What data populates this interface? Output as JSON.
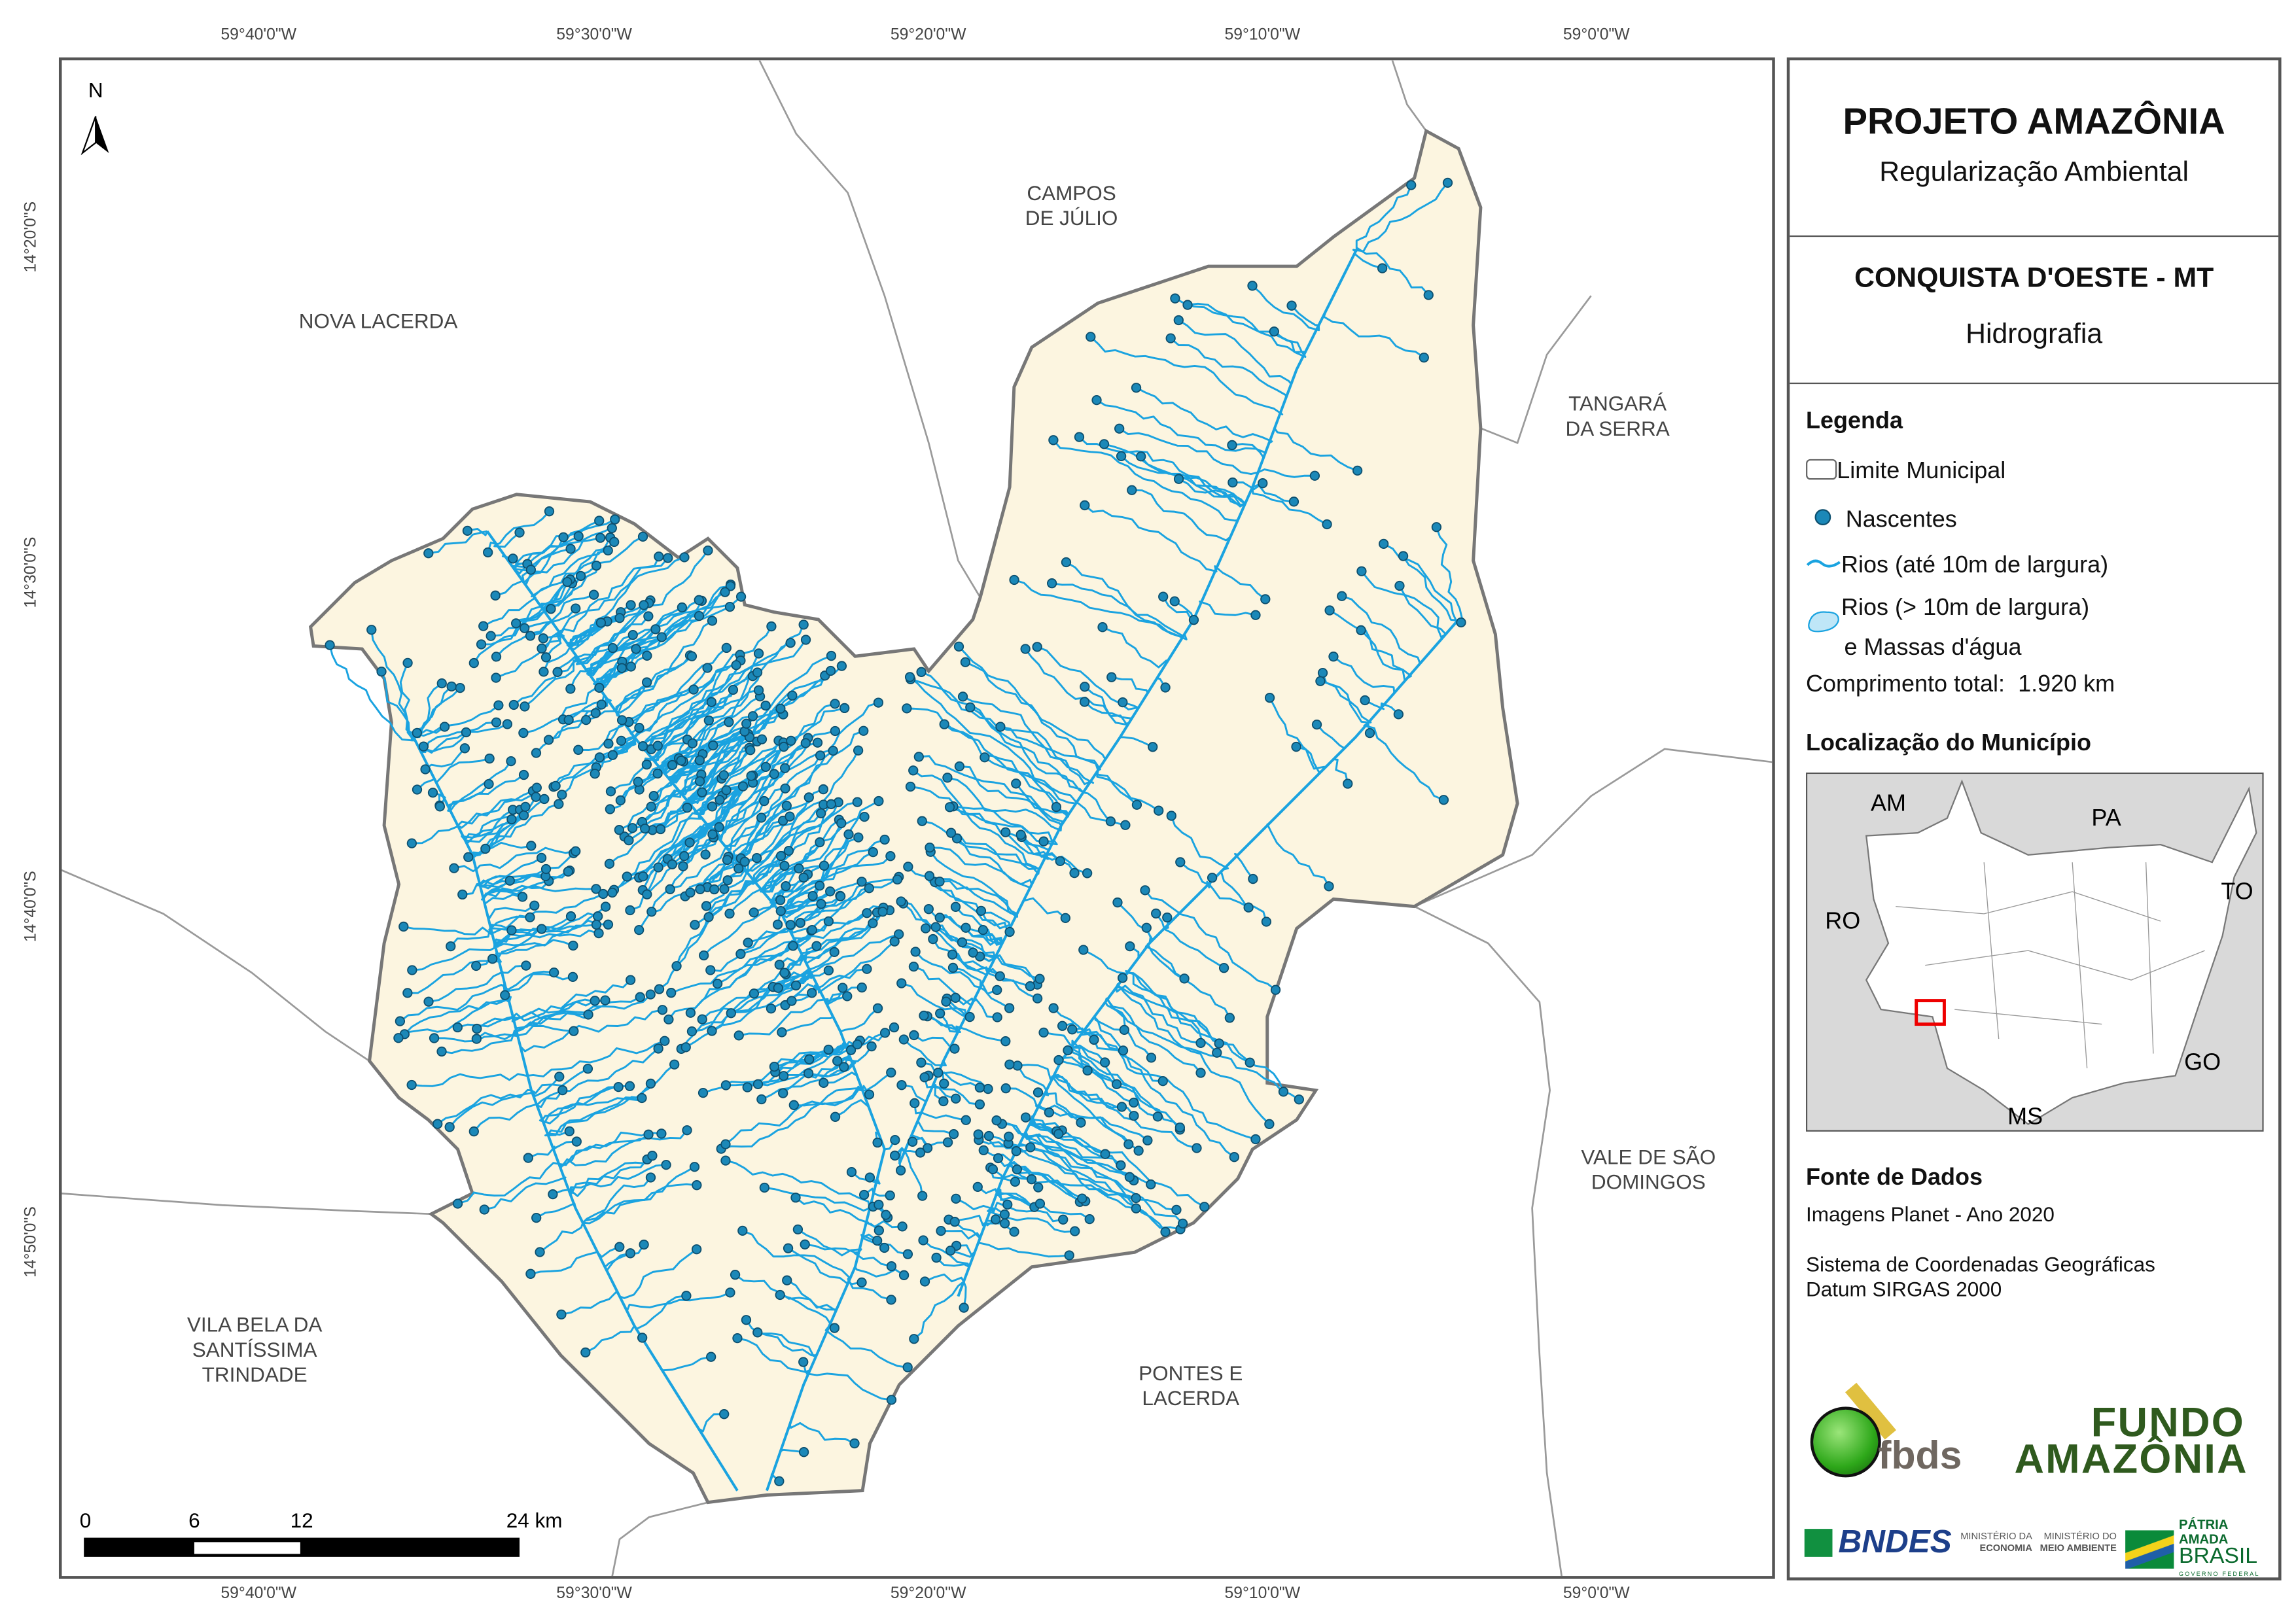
{
  "graticule": {
    "x_labels": [
      "59°40'0\"W",
      "59°30'0\"W",
      "59°20'0\"W",
      "59°10'0\"W",
      "59°0'0\"W"
    ],
    "y_labels": [
      "14°20'0\"S",
      "14°30'0\"S",
      "14°40'0\"S",
      "14°50'0\"S"
    ]
  },
  "map": {
    "north_label": "N",
    "neighbors": {
      "campos": [
        "CAMPOS",
        "DE JÚLIO"
      ],
      "nova": [
        "NOVA LACERDA"
      ],
      "tangara": [
        "TANGARÁ",
        "DA SERRA"
      ],
      "vale": [
        "VALE DE SÃO",
        "DOMINGOS"
      ],
      "vila": [
        "VILA BELA DA",
        "SANTÍSSIMA",
        "TRINDADE"
      ],
      "pontes": [
        "PONTES E",
        "LACERDA"
      ]
    },
    "scale": {
      "labels": [
        "0",
        "6",
        "12",
        "24 km"
      ]
    },
    "colors": {
      "municipality_fill": "#fcf5e0",
      "river": "#1aa3e0",
      "spring": "#1b88b8",
      "boundary": "#777777",
      "neighbor_line": "#9a9a9a"
    }
  },
  "panel": {
    "title": "PROJETO AMAZÔNIA",
    "subtitle": "Regularização Ambiental",
    "municipality": "CONQUISTA D'OESTE - MT",
    "theme": "Hidrografia",
    "legend_title": "Legenda",
    "legend": {
      "limit": "Limite Municipal",
      "springs": "Nascentes",
      "rivers_small": "Rios (até 10m de largura)",
      "rivers_large_1": "Rios (> 10m de largura)",
      "rivers_large_2": "e Massas d'água",
      "total_label": "Comprimento total:",
      "total_value": "1.920 km"
    },
    "location_title": "Localização do Município",
    "inset_labels": {
      "am": "AM",
      "pa": "PA",
      "to": "TO",
      "ro": "RO",
      "go": "GO",
      "ms": "MS"
    },
    "sources_title": "Fonte de Dados",
    "sources": [
      "Imagens Planet - Ano 2020",
      "Sistema de Coordenadas Geográficas",
      "Datum SIRGAS 2000"
    ],
    "logos": {
      "fbds": "fbds",
      "fundo": [
        "FUNDO",
        "AMAZÔNIA"
      ],
      "bndes": "BNDES",
      "min_eco": [
        "MINISTÉRIO DA",
        "ECONOMIA"
      ],
      "min_amb": [
        "MINISTÉRIO DO",
        "MEIO AMBIENTE"
      ],
      "brasil": [
        "PÁTRIA AMADA",
        "BRASIL",
        "GOVERNO FEDERAL"
      ]
    }
  }
}
